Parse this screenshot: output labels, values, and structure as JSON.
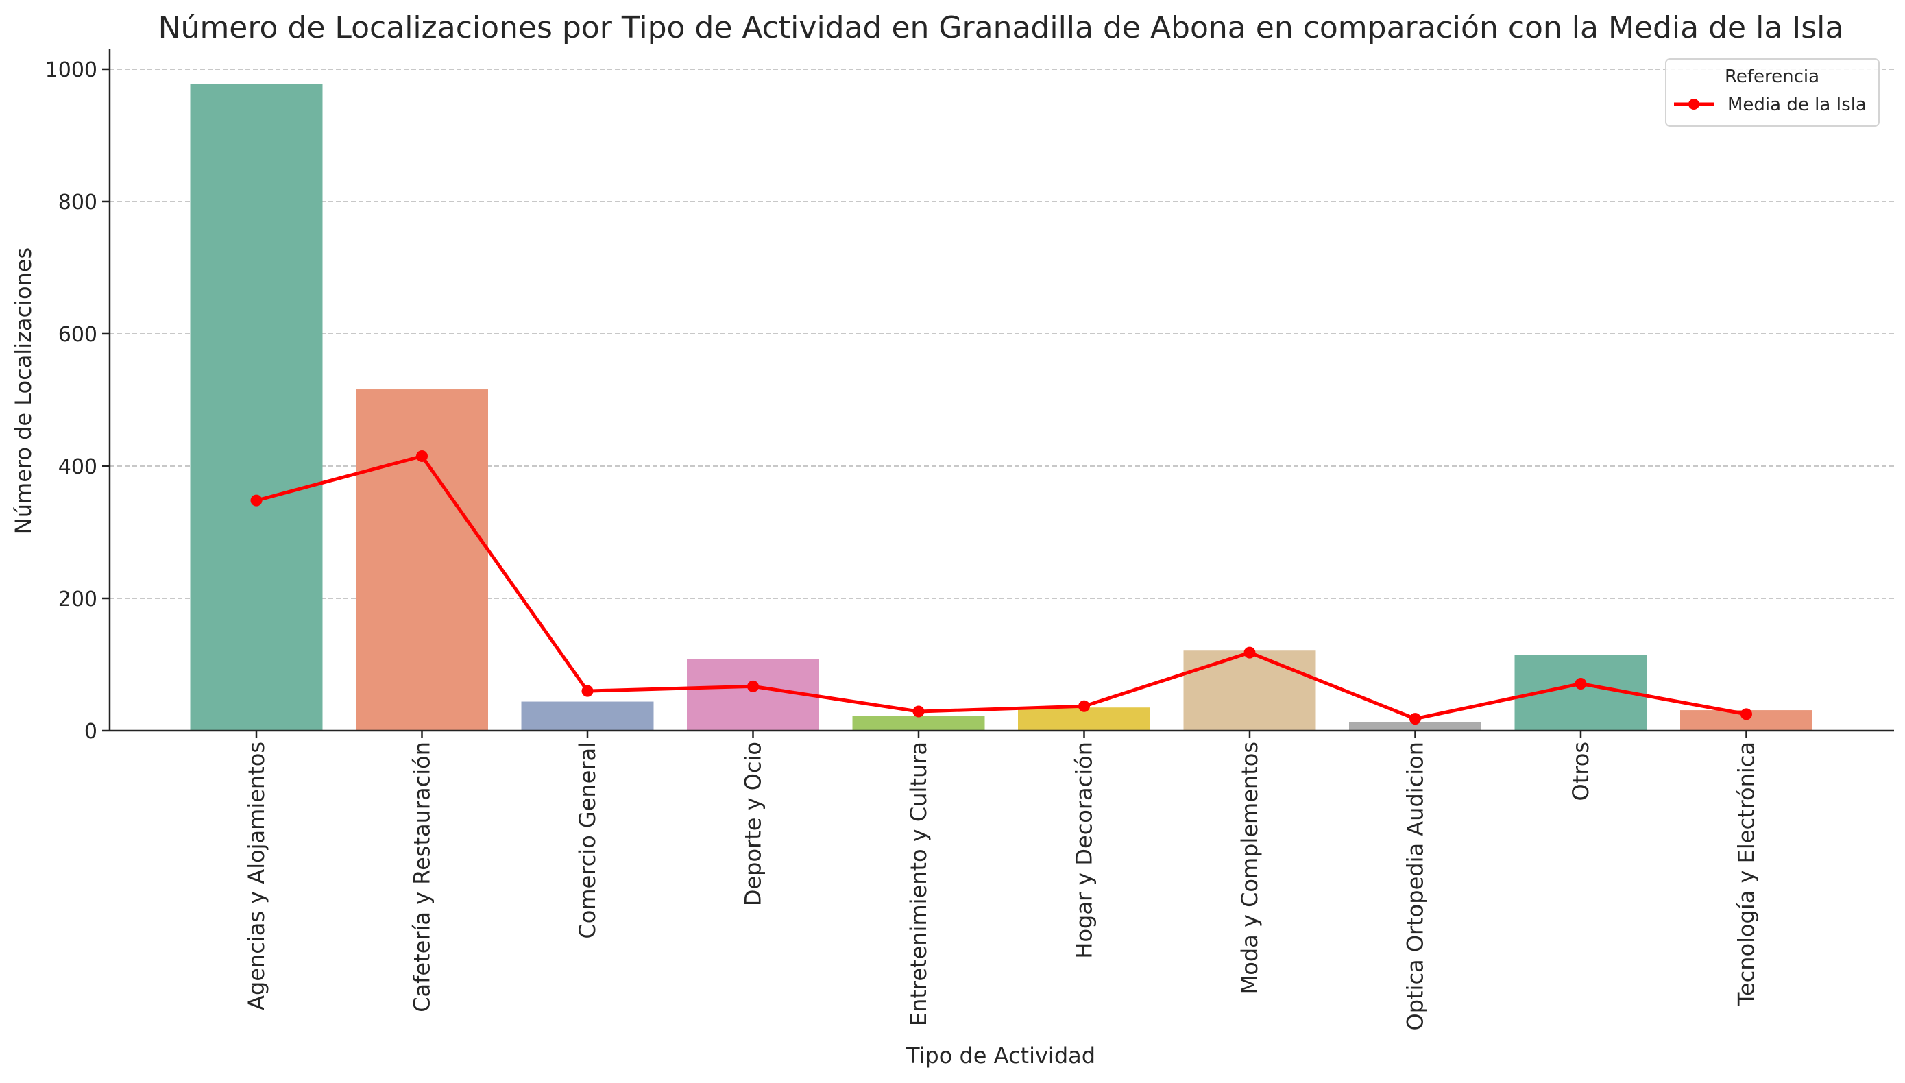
{
  "chart_data": {
    "type": "bar",
    "title": "Número de Localizaciones por Tipo de Actividad en Granadilla de Abona en comparación con la Media de la Isla",
    "xlabel": "Tipo de Actividad",
    "ylabel": "Número de Localizaciones",
    "ylim": [
      0,
      1030
    ],
    "yticks": [
      0,
      200,
      400,
      600,
      800,
      1000
    ],
    "grid": "horizontal",
    "categories": [
      "Agencias y Alojamientos",
      "Cafetería y Restauración",
      "Comercio General",
      "Deporte y Ocio",
      "Entretenimiento y Cultura",
      "Hogar y Decoración",
      "Moda y Complementos",
      "Optica Ortopedia Audicion",
      "Otros",
      "Tecnología y Electrónica"
    ],
    "values": [
      978,
      516,
      44,
      108,
      22,
      35,
      121,
      13,
      114,
      31
    ],
    "bar_colors": [
      "#72b4a0",
      "#e9967a",
      "#94a4c4",
      "#dc94c0",
      "#a0c864",
      "#e4c84a",
      "#dcc39e",
      "#acacac",
      "#72b4a0",
      "#e9967a"
    ],
    "series": [
      {
        "name": "Media de la Isla",
        "type": "line",
        "color": "#ff0000",
        "values": [
          348,
          415,
          60,
          67,
          29,
          37,
          118,
          18,
          71,
          25
        ]
      }
    ],
    "legend": {
      "title": "Referencia",
      "position": "top-right"
    }
  }
}
